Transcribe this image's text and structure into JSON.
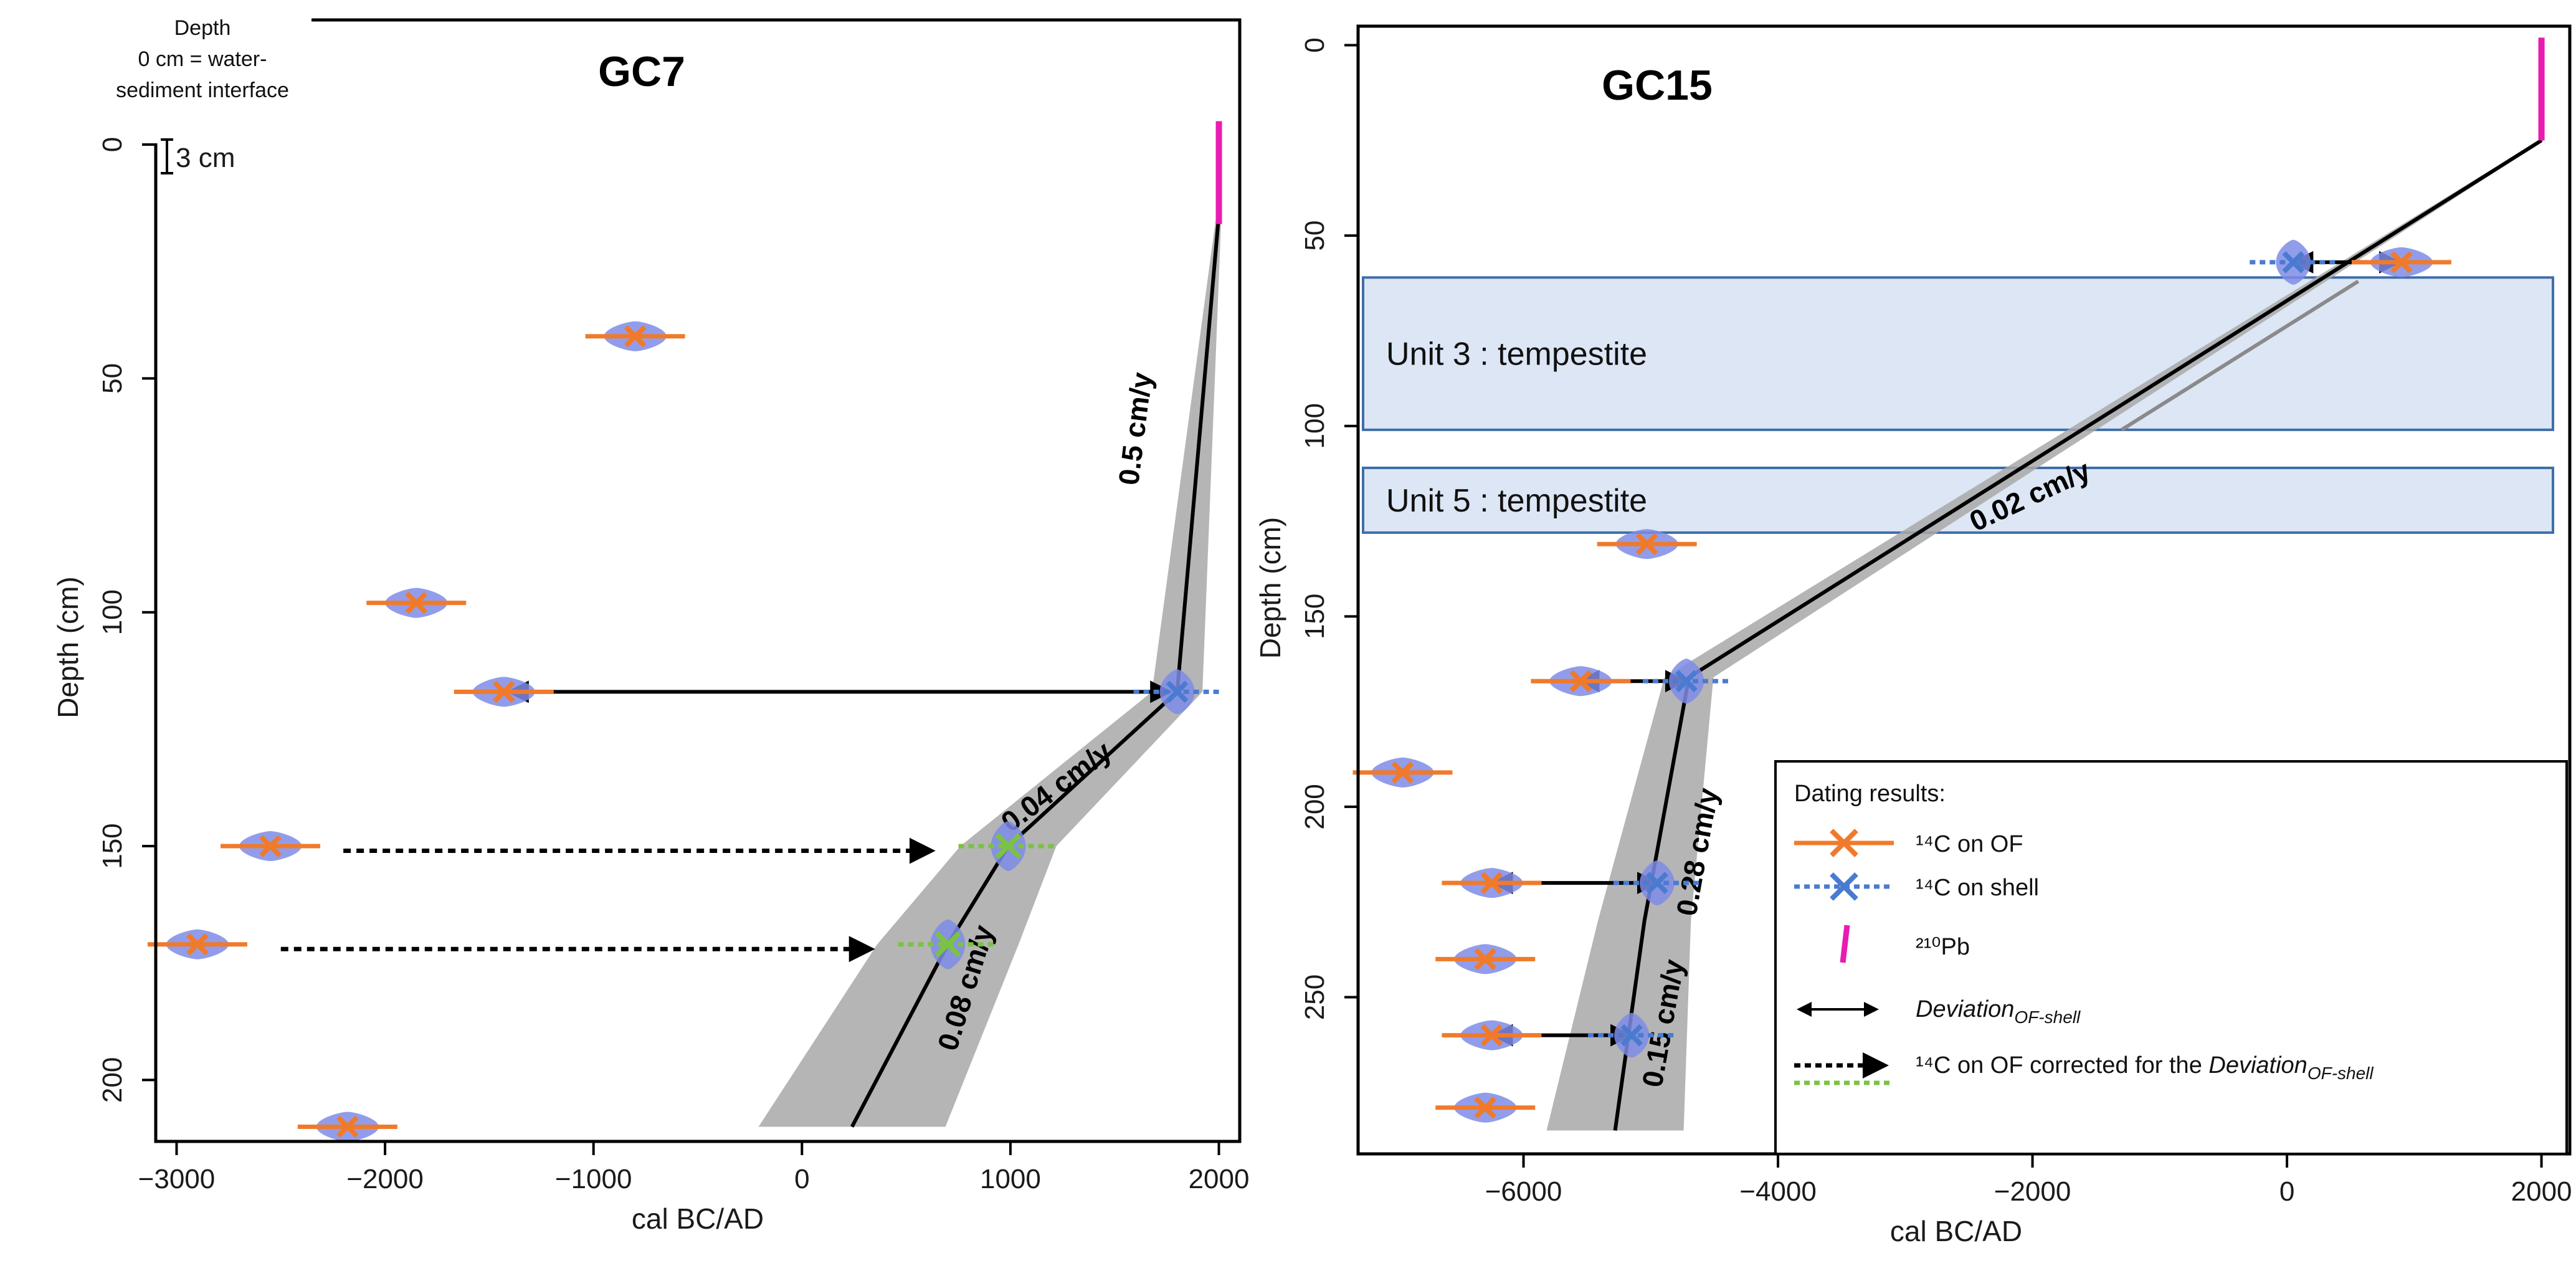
{
  "chart_data": [
    {
      "panel": "left",
      "type": "scatter",
      "title": "GC7",
      "xlabel": "cal BC/AD",
      "ylabel": "Depth (cm)",
      "xlim": [
        -3100,
        2100
      ],
      "ylim": [
        0,
        215
      ],
      "y_reversed": true,
      "x_ticks": [
        -3000,
        -2000,
        -1000,
        0,
        1000,
        2000
      ],
      "x_tick_labels": [
        "−3000",
        "−2000",
        "−1000",
        "0",
        "1000",
        "2000"
      ],
      "y_ticks": [
        0,
        50,
        100,
        150,
        200
      ],
      "y_tick_labels": [
        "0",
        "50",
        "100",
        "150",
        "200"
      ],
      "depth_note": [
        "Depth",
        "0 cm = water-",
        "sediment interface"
      ],
      "scale_label": "3 cm",
      "c14_of": [
        {
          "depth": 41,
          "age": -800
        },
        {
          "depth": 98,
          "age": -1850
        },
        {
          "depth": 117,
          "age": -1430
        },
        {
          "depth": 150,
          "age": -2550
        },
        {
          "depth": 171,
          "age": -2900
        },
        {
          "depth": 210,
          "age": -2180
        }
      ],
      "c14_shell": [
        {
          "depth": 117,
          "age": 1800
        }
      ],
      "c14_corrected": [
        {
          "depth": 150,
          "age": 990
        },
        {
          "depth": 171,
          "age": 700
        }
      ],
      "pb210": {
        "depth_top": -5,
        "depth_bottom": 17,
        "age": 2000
      },
      "age_model": [
        [
          2000,
          15
        ],
        [
          1800,
          117
        ],
        [
          990,
          150
        ],
        [
          700,
          171
        ],
        [
          240,
          210
        ]
      ],
      "deviation_arrows": [
        {
          "depth": 117,
          "from": -1400,
          "to": 1760
        }
      ],
      "corrected_arrows": [
        {
          "depth": 151,
          "from": -2200,
          "to": 620
        },
        {
          "depth": 172,
          "from": -2500,
          "to": 330
        }
      ],
      "rate_labels": [
        "0.5 cm/y",
        "0.04 cm/y",
        "0.08 cm/y"
      ]
    },
    {
      "panel": "right",
      "type": "scatter",
      "title": "GC15",
      "xlabel": "cal BC/AD",
      "ylabel": "Depth (cm)",
      "xlim": [
        -7300,
        2100
      ],
      "ylim": [
        -5,
        290
      ],
      "y_reversed": true,
      "x_ticks": [
        -6000,
        -4000,
        -2000,
        0,
        2000
      ],
      "x_tick_labels": [
        "−6000",
        "−4000",
        "−2000",
        "0",
        "2000"
      ],
      "y_ticks": [
        0,
        50,
        100,
        150,
        200,
        250
      ],
      "y_tick_labels": [
        "0",
        "50",
        "100",
        "150",
        "200",
        "250"
      ],
      "c14_of": [
        {
          "depth": 57,
          "age": 900
        },
        {
          "depth": 131,
          "age": -5030
        },
        {
          "depth": 167,
          "age": -5550
        },
        {
          "depth": 191,
          "age": -6950
        },
        {
          "depth": 220,
          "age": -6250
        },
        {
          "depth": 240,
          "age": -6300
        },
        {
          "depth": 260,
          "age": -6250
        },
        {
          "depth": 279,
          "age": -6300
        }
      ],
      "c14_shell": [
        {
          "depth": 57,
          "age": 50
        },
        {
          "depth": 167,
          "age": -4720
        },
        {
          "depth": 220,
          "age": -4950
        },
        {
          "depth": 260,
          "age": -5150
        }
      ],
      "pb210": {
        "depth_top": -2,
        "depth_bottom": 25,
        "age": 2000
      },
      "age_model": [
        [
          2000,
          25
        ],
        [
          -4700,
          166
        ],
        [
          -5050,
          230
        ],
        [
          -5280,
          285
        ]
      ],
      "deviation_arrows": [
        {
          "depth": 57,
          "from": 870,
          "to": 60
        },
        {
          "depth": 167,
          "from": -5550,
          "to": -4740
        },
        {
          "depth": 220,
          "from": -6230,
          "to": -4960
        },
        {
          "depth": 260,
          "from": -6230,
          "to": -5170
        }
      ],
      "units": [
        {
          "label": "Unit 3 : tempestite",
          "top": 61,
          "bottom": 101
        },
        {
          "label": "Unit 5 : tempestite",
          "top": 111,
          "bottom": 128
        }
      ],
      "rate_labels": [
        "0.02 cm/y",
        "0.28 cm/y",
        "0.15 cm/y"
      ]
    }
  ],
  "legend": {
    "title": "Dating results:",
    "items": [
      {
        "text": "¹⁴C on OF",
        "color": "#F07A2B"
      },
      {
        "text": "¹⁴C on shell",
        "color": "#4A7BD0"
      },
      {
        "text": "²¹⁰Pb",
        "color": "#E81CB0"
      },
      {
        "text": "Deviation",
        "subscript": "OF-shell"
      },
      {
        "text": "¹⁴C on OF corrected for the ",
        "italic_part": "Deviation",
        "subscript": "OF-shell"
      }
    ]
  },
  "colors": {
    "of": "#F07A2B",
    "shell": "#4A7BD0",
    "violin": "#7E8CE8",
    "pb210": "#E81CB0",
    "corrected": "#7CC242",
    "envelope": "#A8A8A8",
    "unit_fill": "#DCE6F5",
    "unit_border": "#3E6EA8",
    "model": "#000000"
  }
}
